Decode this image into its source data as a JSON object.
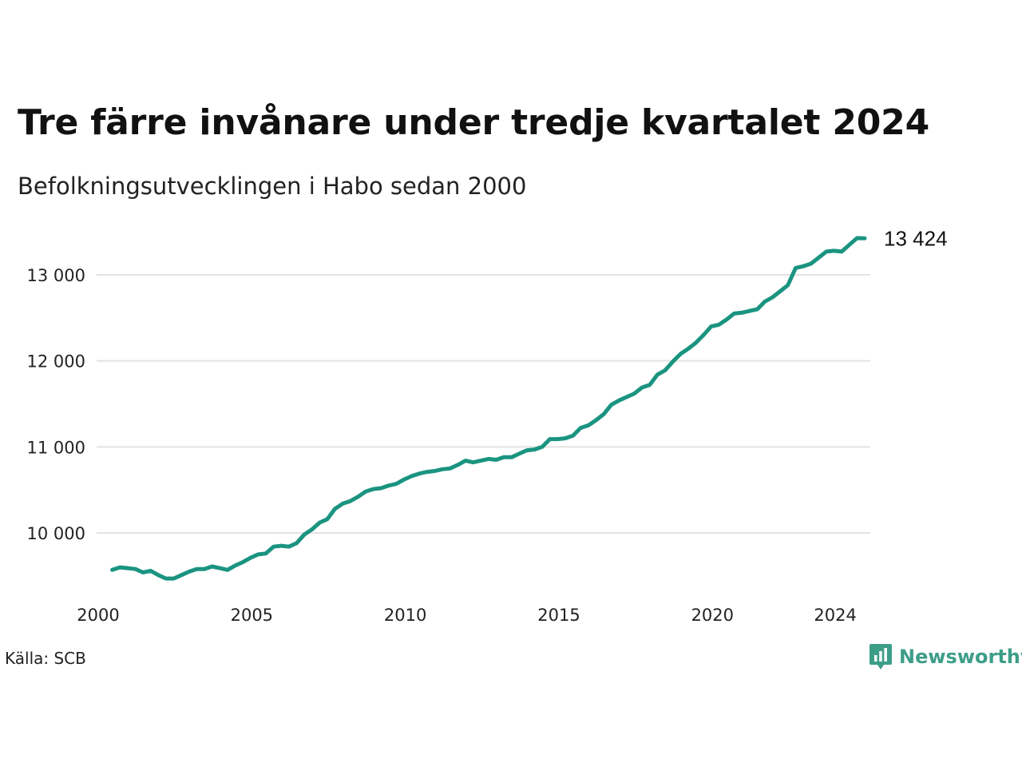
{
  "header": {
    "title": "Tre färre invånare under tredje kvartalet 2024",
    "subtitle": "Befolkningsutvecklingen i Habo sedan 2000"
  },
  "footer": {
    "source": "Källa: SCB",
    "brand": "Newsworthy"
  },
  "colors": {
    "line": "#1a9480",
    "grid": "#e3e3e3",
    "brand": "#3d9e88"
  },
  "icons": {
    "brand": "newsworthy-logo-icon"
  },
  "chart_data": {
    "type": "line",
    "title": "Tre färre invånare under tredje kvartalet 2024",
    "subtitle": "Befolkningsutvecklingen i Habo sedan 2000",
    "xlabel": "",
    "ylabel": "",
    "xlim": [
      2000,
      2024.75
    ],
    "ylim": [
      9400,
      13450
    ],
    "x_ticks": [
      2000,
      2005,
      2010,
      2015,
      2020,
      2024
    ],
    "x_tick_labels": [
      "2000",
      "2005",
      "2010",
      "2015",
      "2020",
      "2024"
    ],
    "y_ticks": [
      10000,
      11000,
      12000,
      13000
    ],
    "y_tick_labels": [
      "10 000",
      "11 000",
      "12 000",
      "13 000"
    ],
    "grid": "horizontal",
    "end_label": "13 424",
    "series": [
      {
        "x": [
          2000.25,
          2000.5,
          2000.75,
          2001,
          2001.25,
          2001.5,
          2001.75,
          2002,
          2002.25,
          2002.5,
          2002.75,
          2003,
          2003.25,
          2003.5,
          2003.75,
          2004,
          2004.25,
          2004.5,
          2004.75,
          2005,
          2005.25,
          2005.5,
          2005.75,
          2006,
          2006.25,
          2006.5,
          2006.75,
          2007,
          2007.25,
          2007.5,
          2007.75,
          2008,
          2008.25,
          2008.5,
          2008.75,
          2009,
          2009.25,
          2009.5,
          2009.75,
          2010,
          2010.25,
          2010.5,
          2010.75,
          2011,
          2011.25,
          2011.5,
          2011.75,
          2012,
          2012.25,
          2012.5,
          2012.75,
          2013,
          2013.25,
          2013.5,
          2013.75,
          2014,
          2014.25,
          2014.5,
          2014.75,
          2015,
          2015.25,
          2015.5,
          2015.75,
          2016,
          2016.25,
          2016.5,
          2016.75,
          2017,
          2017.25,
          2017.5,
          2017.75,
          2018,
          2018.25,
          2018.5,
          2018.75,
          2019,
          2019.25,
          2019.5,
          2019.75,
          2020,
          2020.25,
          2020.5,
          2020.75,
          2021,
          2021.25,
          2021.5,
          2021.75,
          2022,
          2022.25,
          2022.5,
          2022.75,
          2023,
          2023.25,
          2023.5,
          2023.75,
          2024,
          2024.25,
          2024.5,
          2024.75
        ],
        "y": [
          9570,
          9600,
          9590,
          9580,
          9540,
          9560,
          9510,
          9470,
          9470,
          9510,
          9550,
          9580,
          9580,
          9610,
          9590,
          9570,
          9620,
          9660,
          9710,
          9750,
          9760,
          9840,
          9850,
          9840,
          9880,
          9980,
          10040,
          10120,
          10160,
          10280,
          10340,
          10370,
          10420,
          10480,
          10510,
          10520,
          10550,
          10570,
          10620,
          10660,
          10690,
          10710,
          10720,
          10740,
          10750,
          10790,
          10840,
          10820,
          10840,
          10860,
          10850,
          10880,
          10880,
          10920,
          10960,
          10970,
          11000,
          11090,
          11090,
          11100,
          11130,
          11220,
          11250,
          11310,
          11380,
          11490,
          11540,
          11580,
          11620,
          11690,
          11720,
          11840,
          11890,
          11990,
          12080,
          12140,
          12210,
          12300,
          12400,
          12420,
          12480,
          12550,
          12560,
          12580,
          12600,
          12690,
          12740,
          12810,
          12880,
          13080,
          13100,
          13130,
          13200,
          13270,
          13280,
          13270,
          13350,
          13427,
          13424
        ]
      }
    ]
  }
}
